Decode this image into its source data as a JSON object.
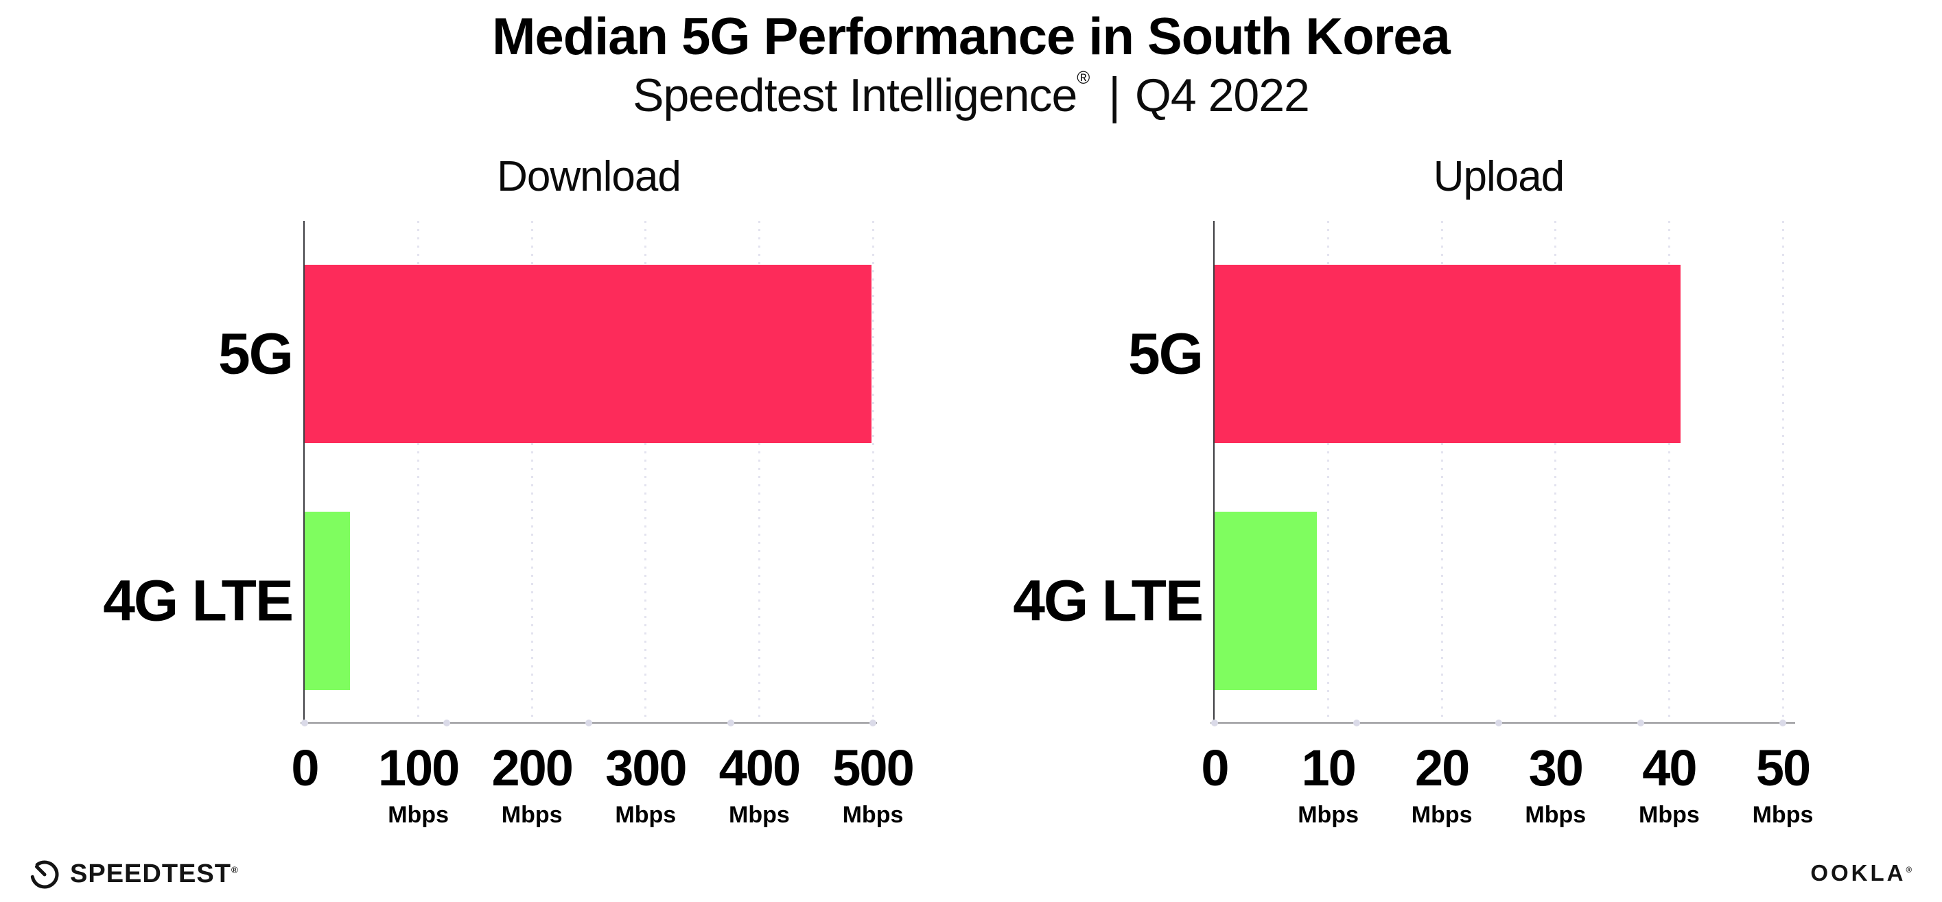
{
  "header": {
    "title": "Median 5G Performance in South Korea",
    "subtitle": {
      "brand": "Speedtest Intelligence",
      "reg": "®",
      "divider": "|",
      "period": "Q4 2022"
    }
  },
  "chart_data": [
    {
      "type": "bar",
      "orientation": "horizontal",
      "title": "Download",
      "categories": [
        "5G",
        "4G LTE"
      ],
      "values": [
        499,
        40
      ],
      "unit": "Mbps",
      "xlim": [
        0,
        500
      ],
      "xticks": [
        0,
        100,
        200,
        300,
        400,
        500
      ],
      "bar_colors": [
        "#FD2B5A",
        "#7FFD5F"
      ],
      "grid": "vertical-dotted",
      "legend": "none"
    },
    {
      "type": "bar",
      "orientation": "horizontal",
      "title": "Upload",
      "categories": [
        "5G",
        "4G LTE"
      ],
      "values": [
        41,
        9
      ],
      "unit": "Mbps",
      "xlim": [
        0,
        50
      ],
      "xticks": [
        0,
        10,
        20,
        30,
        40,
        50
      ],
      "bar_colors": [
        "#FD2B5A",
        "#7FFD5F"
      ],
      "grid": "vertical-dotted",
      "legend": "none"
    }
  ],
  "colors": {
    "bar_5g": "#FD2B5A",
    "bar_4g_lte": "#7FFD5F",
    "gridline": "#E3E3EF",
    "axis_y": "#3C3C41",
    "axis_x": "#949498",
    "text": "#000000"
  },
  "footer": {
    "speedtest_label": "SPEEDTEST",
    "speedtest_mark": "®",
    "ookla_label": "OOKLA",
    "ookla_mark": "®"
  }
}
